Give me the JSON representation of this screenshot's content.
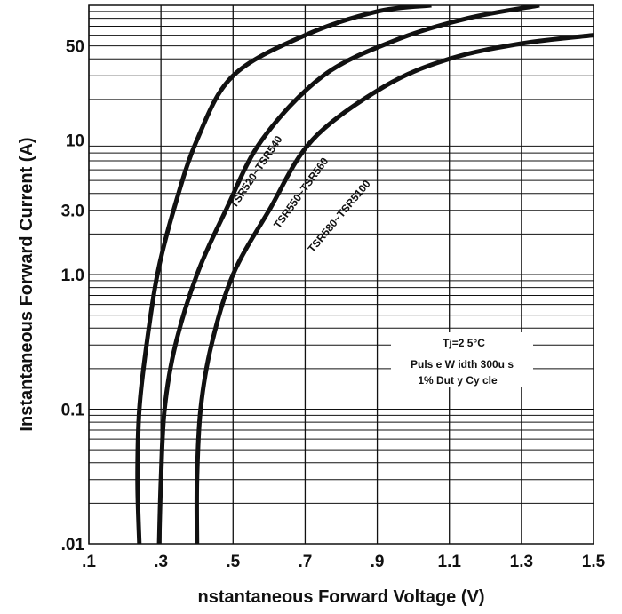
{
  "chart_data": {
    "type": "line",
    "xlabel": "nstantaneous Forward Voltage (V)",
    "ylabel": "Instantaneous Forward Current (A)",
    "xlim": [
      0.1,
      1.5
    ],
    "ylim": [
      0.01,
      100
    ],
    "y_scale": "log",
    "grid": true,
    "x_ticks": [
      {
        "value": 0.1,
        "label": ".1"
      },
      {
        "value": 0.3,
        "label": ".3"
      },
      {
        "value": 0.5,
        "label": ".5"
      },
      {
        "value": 0.7,
        "label": ".7"
      },
      {
        "value": 0.9,
        "label": ".9"
      },
      {
        "value": 1.1,
        "label": "1.1"
      },
      {
        "value": 1.3,
        "label": "1.3"
      },
      {
        "value": 1.5,
        "label": "1.5"
      }
    ],
    "y_ticks": [
      {
        "value": 0.01,
        "label": ".01"
      },
      {
        "value": 0.1,
        "label": "0.1"
      },
      {
        "value": 1,
        "label": "1.0"
      },
      {
        "value": 3,
        "label": "3.0"
      },
      {
        "value": 10,
        "label": "10"
      },
      {
        "value": 50,
        "label": "50"
      }
    ],
    "series": [
      {
        "name": "TSR520~TSR540",
        "points": [
          [
            0.24,
            0.01
          ],
          [
            0.235,
            0.03
          ],
          [
            0.24,
            0.1
          ],
          [
            0.26,
            0.3
          ],
          [
            0.29,
            1
          ],
          [
            0.335,
            3
          ],
          [
            0.4,
            10
          ],
          [
            0.5,
            30
          ],
          [
            0.7,
            60
          ],
          [
            0.9,
            90
          ],
          [
            1.05,
            100
          ]
        ]
      },
      {
        "name": "TSR550~TSR560",
        "points": [
          [
            0.295,
            0.01
          ],
          [
            0.3,
            0.03
          ],
          [
            0.31,
            0.1
          ],
          [
            0.34,
            0.3
          ],
          [
            0.4,
            1
          ],
          [
            0.48,
            3
          ],
          [
            0.58,
            10
          ],
          [
            0.75,
            30
          ],
          [
            0.95,
            55
          ],
          [
            1.15,
            80
          ],
          [
            1.35,
            100
          ]
        ]
      },
      {
        "name": "TSR580~TSR5100",
        "points": [
          [
            0.4,
            0.01
          ],
          [
            0.4,
            0.03
          ],
          [
            0.41,
            0.1
          ],
          [
            0.44,
            0.3
          ],
          [
            0.5,
            1
          ],
          [
            0.6,
            3
          ],
          [
            0.72,
            10
          ],
          [
            0.92,
            25
          ],
          [
            1.1,
            40
          ],
          [
            1.3,
            52
          ],
          [
            1.5,
            60
          ]
        ]
      }
    ],
    "annotations": [
      "Tj=2 5°C",
      "Puls e  W idth  300u s",
      "1%  Dut y Cy cle"
    ],
    "color": "#111111"
  }
}
